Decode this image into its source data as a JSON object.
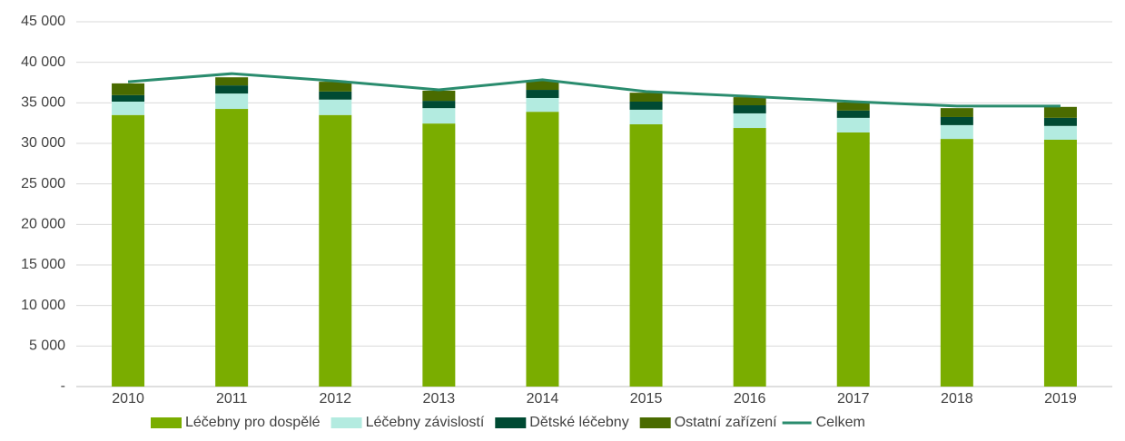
{
  "chart_data": {
    "type": "bar",
    "categories": [
      "2010",
      "2011",
      "2012",
      "2013",
      "2014",
      "2015",
      "2016",
      "2017",
      "2018",
      "2019"
    ],
    "series": [
      {
        "name": "Léčebny pro dospělé",
        "color": "#7aad00",
        "values": [
          33500,
          34250,
          33500,
          32450,
          33900,
          32350,
          31900,
          31350,
          30550,
          30450
        ]
      },
      {
        "name": "Léčebny závislostí",
        "color": "#b3ebe0",
        "values": [
          1650,
          1900,
          1900,
          1900,
          1700,
          1800,
          1800,
          1800,
          1700,
          1700
        ]
      },
      {
        "name": "Dětské léčebny",
        "color": "#004a33",
        "values": [
          800,
          1000,
          1000,
          900,
          1000,
          1000,
          1000,
          900,
          1000,
          1000
        ]
      },
      {
        "name": "Ostatní zařízení",
        "color": "#4a6b00",
        "values": [
          1450,
          1000,
          1200,
          1250,
          1100,
          1100,
          1000,
          1000,
          1100,
          1350
        ]
      },
      {
        "name": "Celkem",
        "color": "#2a8c6e",
        "type": "line",
        "values": [
          37600,
          38600,
          37700,
          36600,
          37850,
          36400,
          35800,
          35150,
          34600,
          34600
        ]
      }
    ],
    "ylim": [
      0,
      45000
    ],
    "yticks": [
      {
        "value": 0,
        "label": "-"
      },
      {
        "value": 5000,
        "label": "5 000"
      },
      {
        "value": 10000,
        "label": "10 000"
      },
      {
        "value": 15000,
        "label": "15 000"
      },
      {
        "value": 20000,
        "label": "20 000"
      },
      {
        "value": 25000,
        "label": "25 000"
      },
      {
        "value": 30000,
        "label": "30 000"
      },
      {
        "value": 35000,
        "label": "35 000"
      },
      {
        "value": 40000,
        "label": "40 000"
      },
      {
        "value": 45000,
        "label": "45 000"
      }
    ],
    "grid": true,
    "legend": "bottom"
  }
}
